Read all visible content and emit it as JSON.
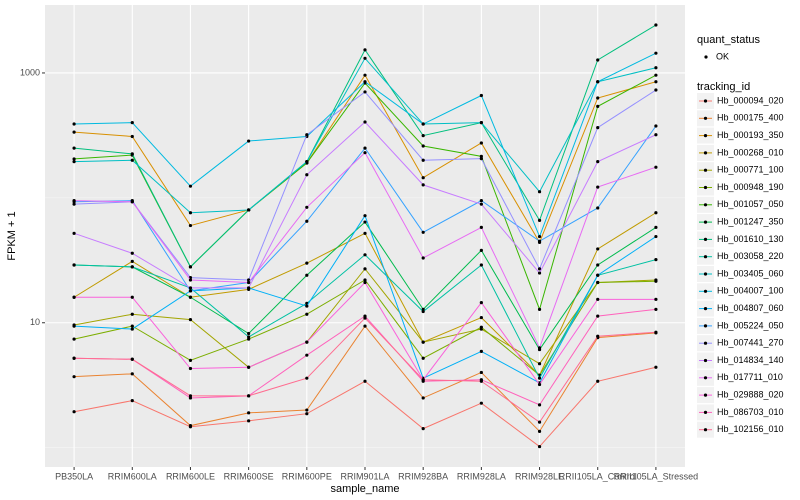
{
  "chart_data": {
    "type": "line",
    "x_label": "sample_name",
    "y_label": "FPKM + 1",
    "log_y": true,
    "grid": true,
    "ylim": [
      0.7,
      3500
    ],
    "yticks": [
      10,
      1000
    ],
    "y_minor_grid": [
      1,
      100
    ],
    "status_legend": {
      "title": "quant_status",
      "labels": [
        "OK"
      ]
    },
    "legend_title": "tracking_id",
    "categories": [
      "PB350LA",
      "RRIM600LA",
      "RRIM600LE",
      "RRIM600SE",
      "RRIM600PE",
      "RRIM901LA",
      "RRIM928BA",
      "RRIM928LA",
      "RRIM928LE",
      "RRII105LA_Control",
      "RRII105LA_Stressed"
    ],
    "series": [
      {
        "name": "Hb_000094_020",
        "color": "#F8766D",
        "values": [
          1.94,
          2.38,
          1.47,
          1.64,
          1.87,
          3.4,
          1.42,
          2.27,
          1.02,
          3.4,
          4.4
        ]
      },
      {
        "name": "Hb_000175_400",
        "color": "#EA8331",
        "values": [
          3.7,
          3.9,
          1.5,
          1.9,
          2.0,
          9.4,
          2.5,
          4.0,
          1.35,
          7.6,
          8.3
        ]
      },
      {
        "name": "Hb_000193_350",
        "color": "#D89000",
        "values": [
          336,
          310,
          60,
          80,
          190,
          960,
          145,
          275,
          44,
          630,
          850
        ]
      },
      {
        "name": "Hb_000268_010",
        "color": "#C09B00",
        "values": [
          16,
          31,
          16,
          18.5,
          30,
          52,
          7,
          11,
          3.8,
          39,
          76
        ]
      },
      {
        "name": "Hb_000771_100",
        "color": "#A3A500",
        "values": [
          9.6,
          11.7,
          10.6,
          4.4,
          7,
          27,
          7,
          8.9,
          4.7,
          21,
          22
        ]
      },
      {
        "name": "Hb_000948_190",
        "color": "#7CAE00",
        "values": [
          7.4,
          9.4,
          5,
          7.4,
          11.7,
          22,
          5.2,
          9.2,
          3.8,
          21,
          21.5
        ]
      },
      {
        "name": "Hb_001057_050",
        "color": "#39B600",
        "values": [
          205,
          220,
          28,
          80,
          190,
          830,
          260,
          215,
          12.8,
          540,
          960
        ]
      },
      {
        "name": "Hb_001247_350",
        "color": "#00BB4E",
        "values": [
          29,
          28,
          16,
          8.2,
          24,
          64,
          12.8,
          38,
          6.1,
          29,
          58
        ]
      },
      {
        "name": "Hb_001610_130",
        "color": "#00BF7D",
        "values": [
          250,
          225,
          28,
          80,
          195,
          1530,
          315,
          400,
          66,
          1270,
          2420
        ]
      },
      {
        "name": "Hb_003058_220",
        "color": "#00C1A3",
        "values": [
          29,
          28,
          19,
          7.7,
          14.3,
          35,
          12.3,
          29,
          3.6,
          24,
          32
        ]
      },
      {
        "name": "Hb_003405_060",
        "color": "#00BFC4",
        "values": [
          195,
          200,
          76,
          80,
          195,
          1310,
          390,
          400,
          112,
          850,
          1100
        ]
      },
      {
        "name": "Hb_004007_100",
        "color": "#00BAE0",
        "values": [
          390,
          400,
          124,
          285,
          310,
          850,
          390,
          660,
          49,
          850,
          1440
        ]
      },
      {
        "name": "Hb_004807_060",
        "color": "#00B0F6",
        "values": [
          9.4,
          8.9,
          18,
          19,
          13.6,
          72,
          3.6,
          5.9,
          3.3,
          24,
          49
        ]
      },
      {
        "name": "Hb_005224_050",
        "color": "#35A2FF",
        "values": [
          93,
          95,
          18,
          21,
          65,
          250,
          53,
          95,
          45,
          83,
          376
        ]
      },
      {
        "name": "Hb_007441_270",
        "color": "#9590FF",
        "values": [
          89,
          93,
          23,
          22,
          320,
          705,
          200,
          206,
          27,
          365,
          730
        ]
      },
      {
        "name": "Hb_014834_140",
        "color": "#C77CFF",
        "values": [
          52,
          36,
          19,
          19,
          153,
          405,
          127,
          89,
          25,
          195,
          320
        ]
      },
      {
        "name": "Hb_017711_010",
        "color": "#E76BF3",
        "values": [
          95,
          93,
          22,
          21,
          84,
          230,
          33,
          58,
          6.3,
          122,
          176
        ]
      },
      {
        "name": "Hb_029888_020",
        "color": "#FA62DB",
        "values": [
          16,
          16,
          4.3,
          4.4,
          7,
          21,
          3.5,
          14.5,
          3.2,
          15.4,
          15.4
        ]
      },
      {
        "name": "Hb_086703_010",
        "color": "#FF62BC",
        "values": [
          5.2,
          5.1,
          2.5,
          2.6,
          5.5,
          11.3,
          3.4,
          3.5,
          2.2,
          11.3,
          12.8
        ]
      },
      {
        "name": "Hb_102156_010",
        "color": "#FF6C90",
        "values": [
          5.2,
          5.1,
          2.6,
          2.6,
          3.6,
          10.9,
          3.5,
          3.4,
          1.6,
          7.8,
          8.4
        ]
      }
    ]
  }
}
